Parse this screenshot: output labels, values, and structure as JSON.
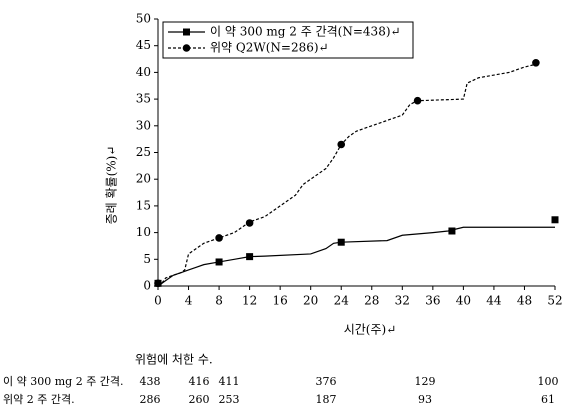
{
  "chart_data": {
    "type": "line",
    "xlabel": "시간(주)↵",
    "ylabel": "증례 확률(%)↵",
    "xlim": [
      0,
      52
    ],
    "xticks": [
      0,
      4,
      8,
      12,
      16,
      20,
      24,
      28,
      32,
      36,
      40,
      44,
      48,
      52
    ],
    "ylim": [
      0,
      50
    ],
    "yticks": [
      0,
      5,
      10,
      15,
      20,
      25,
      30,
      35,
      40,
      45,
      50
    ],
    "legend": "top-left",
    "series": [
      {
        "name": "이 약 300 mg 2 주 간격(N=438)↵",
        "color": "#000000",
        "dash": "solid",
        "marker": "square",
        "x": [
          0,
          0.5,
          1,
          2,
          3,
          4,
          5,
          6,
          8,
          10,
          12,
          14,
          20,
          22,
          23,
          24,
          30,
          32,
          36,
          38,
          40,
          52
        ],
        "values": [
          0,
          0.5,
          1,
          2,
          2.5,
          3,
          3.5,
          4,
          4.5,
          5,
          5.5,
          5.6,
          6,
          7,
          8,
          8.2,
          8.5,
          9.5,
          10,
          10.3,
          11,
          11
        ],
        "marker_x": [
          0,
          8,
          12,
          24,
          38.5,
          52
        ],
        "marker_values": [
          0.5,
          4.5,
          5.5,
          8.2,
          10.3,
          12.4
        ]
      },
      {
        "name": "위약 Q2W(N=286)↵",
        "color": "#000000",
        "dash": "dashed",
        "marker": "circle",
        "x": [
          0,
          0.5,
          1,
          2,
          3,
          3.5,
          4,
          5,
          6,
          8,
          10,
          12,
          14,
          16,
          18,
          19,
          20,
          22,
          23,
          24,
          25,
          26,
          28,
          30,
          32,
          33,
          34,
          40,
          40.5,
          42,
          46,
          48,
          50
        ],
        "values": [
          0,
          0.5,
          1.5,
          2,
          2.5,
          3,
          6,
          7,
          8,
          9,
          10,
          12,
          13,
          15,
          17,
          19,
          20,
          22,
          24,
          26.5,
          28,
          29,
          30,
          31,
          32,
          34,
          34.7,
          35,
          38,
          39,
          40,
          41,
          41.7
        ],
        "marker_x": [
          0,
          8,
          12,
          24,
          34,
          49.5
        ],
        "marker_values": [
          0.5,
          9,
          11.8,
          26.5,
          34.7,
          41.8
        ]
      }
    ]
  },
  "risk_table": {
    "title": "위험에 처한 수.",
    "rows": [
      {
        "label": "이 약 300 mg 2 주 간격.",
        "counts": [
          438,
          416,
          411,
          376,
          129,
          100
        ]
      },
      {
        "label": "위약 2 주 간격.",
        "counts": [
          286,
          260,
          253,
          187,
          93,
          61
        ]
      }
    ]
  }
}
